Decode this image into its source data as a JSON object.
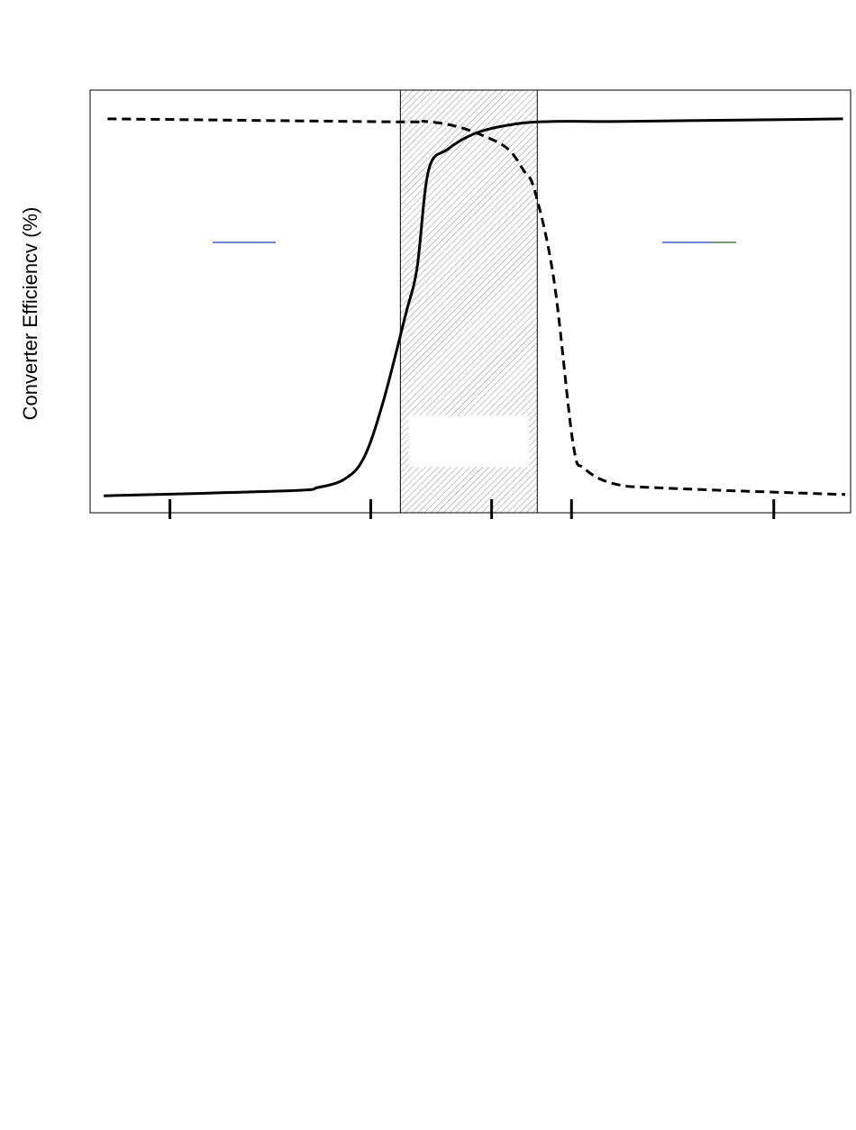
{
  "chart_data": {
    "type": "line",
    "title": "",
    "ylabel": "Converter Efficiencv (%)",
    "xlabel": "",
    "xlim": [
      0,
      100
    ],
    "ylim": [
      0,
      100
    ],
    "grid": false,
    "tick_positions": [
      10.5,
      36.9,
      52.8,
      63.3,
      89.9
    ],
    "shaded_region": {
      "from": 40.8,
      "to": 58.8
    },
    "series": [
      {
        "style": "solid",
        "x": [
          1.8,
          26.2,
          30.0,
          33.5,
          36.0,
          38.5,
          41.5,
          43.0,
          44.5,
          47.0,
          51.0,
          56.0,
          61.0,
          70.0,
          99.0
        ],
        "y": [
          4.0,
          5.2,
          6.0,
          8.0,
          13.0,
          26.0,
          47.0,
          58.0,
          81.0,
          86.0,
          90.0,
          92.0,
          92.6,
          92.6,
          93.2
        ]
      },
      {
        "style": "dashed",
        "x": [
          2.3,
          40.0,
          44.0,
          48.0,
          52.0,
          55.0,
          57.0,
          58.5,
          61.0,
          63.5,
          65.0,
          69.0,
          76.0,
          99.3
        ],
        "y": [
          93.2,
          92.5,
          92.6,
          91.5,
          89.0,
          86.0,
          81.0,
          76.0,
          55.0,
          16.5,
          10.5,
          6.8,
          5.8,
          4.3
        ]
      }
    ]
  }
}
